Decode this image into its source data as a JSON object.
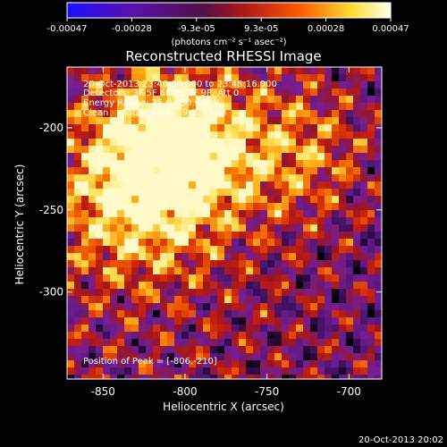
{
  "colorbar": {
    "ticks": [
      "-0.00047",
      "-0.00028",
      "-9.3e-05",
      "9.3e-05",
      "0.00028",
      "0.00047"
    ],
    "units_label": "(photons cm⁻² s⁻¹ asec⁻²)",
    "colors": [
      "#1a10ff",
      "#5a10b0",
      "#501048",
      "#b01818",
      "#ff5a00",
      "#ffdd30",
      "#ffffee"
    ]
  },
  "chart_data": {
    "type": "heatmap",
    "title": "Reconstructed RHESSI Image",
    "xlabel": "Heliocentric X (arcsec)",
    "ylabel": "Heliocentric Y (arcsec)",
    "xlim": [
      -872,
      -680
    ],
    "ylim": [
      -353,
      -163
    ],
    "x_ticks": [
      "-850",
      "-800",
      "-750",
      "-700"
    ],
    "y_ticks": [
      "-200",
      "-250",
      "-300"
    ],
    "x_tick_values": [
      -850,
      -800,
      -750,
      -700
    ],
    "y_tick_values": [
      -200,
      -250,
      -300
    ],
    "peak": [
      -806,
      -210
    ],
    "info_lines": [
      "20-Oct-2013 23:46:04.000 to 23:48:16.000",
      "Detectors: 3F 5F 6F 7F 8F 9F, Att 0",
      "Energy Range: 25.0 - 50.0 keV",
      "Clean     Total counts: 9.92E+03"
    ],
    "peak_label": "Position of Peak = [-806,-210]"
  },
  "footer": {
    "timestamp": "20-Oct-2013 20:02"
  }
}
